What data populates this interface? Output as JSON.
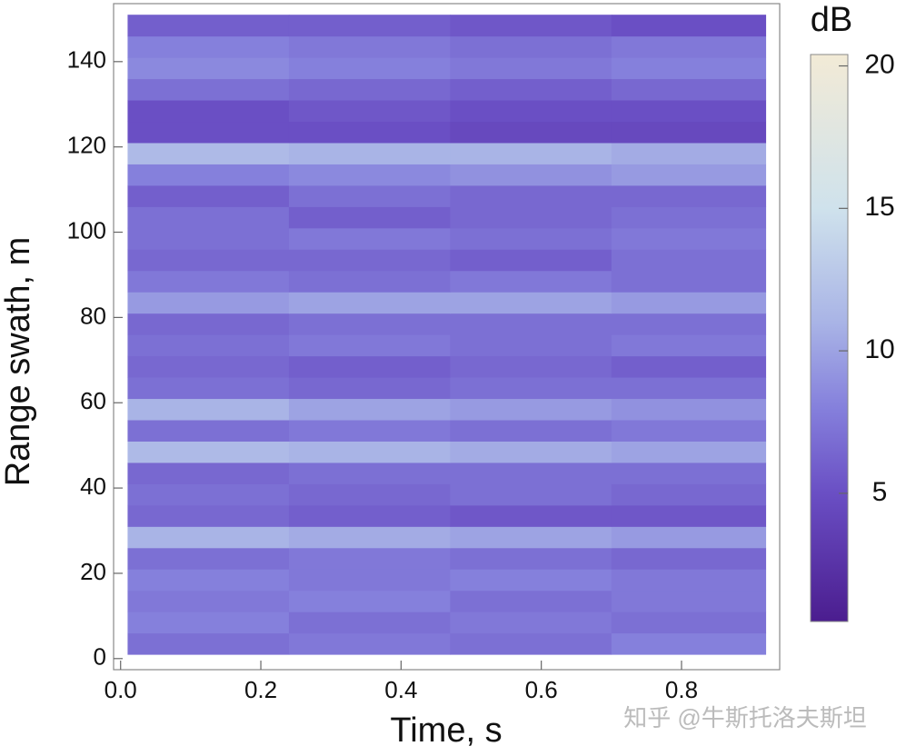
{
  "chart_data": {
    "type": "heatmap",
    "xlabel": "Time, s",
    "ylabel": "Range swath, m",
    "colorbar_label": "dB",
    "watermark": "知乎 @牛斯托洛夫斯坦",
    "xlim": [
      -0.01,
      0.94
    ],
    "ylim": [
      -2.6,
      153.6
    ],
    "xticks": [
      {
        "value": 0,
        "label": "0.0"
      },
      0.2,
      0.4,
      0.6,
      0.8
    ],
    "yticks": [
      0,
      20,
      40,
      60,
      80,
      100,
      120,
      140
    ],
    "x_bins": [
      0.01,
      0.24,
      0.47,
      0.7,
      0.92
    ],
    "y_bins": [
      1,
      6,
      11,
      16,
      21,
      26,
      31,
      36,
      41,
      46,
      51,
      56,
      61,
      66,
      71,
      76,
      81,
      86,
      91,
      96,
      101,
      106,
      111,
      116,
      121,
      126,
      131,
      136,
      141,
      146,
      151
    ],
    "z": [
      [
        7,
        7.5,
        7,
        8
      ],
      [
        8,
        7,
        7.5,
        7
      ],
      [
        7.5,
        8,
        7,
        7.5
      ],
      [
        8,
        7.5,
        8,
        7.5
      ],
      [
        7,
        7.5,
        7,
        6.5
      ],
      [
        11,
        10.5,
        10,
        9.5
      ],
      [
        6.5,
        6,
        5.5,
        5.5
      ],
      [
        7,
        6.5,
        7,
        6.5
      ],
      [
        6.5,
        7,
        7,
        7
      ],
      [
        11.5,
        11,
        10.5,
        10
      ],
      [
        7,
        7.5,
        7,
        7.5
      ],
      [
        11,
        10,
        9.5,
        9
      ],
      [
        7,
        6.5,
        7,
        7
      ],
      [
        6.5,
        6,
        6.5,
        6
      ],
      [
        7,
        7.5,
        7,
        7.5
      ],
      [
        6.5,
        7,
        7,
        7
      ],
      [
        9.5,
        10,
        10,
        9.5
      ],
      [
        7.5,
        7,
        7.5,
        7
      ],
      [
        6.5,
        6.5,
        6,
        7
      ],
      [
        7,
        7.5,
        7,
        7.5
      ],
      [
        7,
        6,
        6.5,
        7
      ],
      [
        6,
        7,
        6.5,
        6.5
      ],
      [
        8,
        8.5,
        9,
        9.5
      ],
      [
        11.5,
        11,
        11,
        10.5
      ],
      [
        5,
        5,
        4.5,
        4.5
      ],
      [
        5,
        5.5,
        5,
        5
      ],
      [
        7,
        6.5,
        6,
        6.5
      ],
      [
        8.5,
        8,
        7.5,
        8
      ],
      [
        8,
        7.5,
        7,
        7.5
      ],
      [
        6,
        6,
        5.5,
        5
      ]
    ],
    "clim": [
      0.5,
      20.4
    ],
    "cticks": [
      5,
      10,
      15,
      20
    ],
    "colorscale": [
      [
        0.5,
        "#4b1d8f"
      ],
      [
        5,
        "#6a4fc4"
      ],
      [
        8,
        "#8580dc"
      ],
      [
        11,
        "#a9b4e6"
      ],
      [
        15,
        "#cfe2ec"
      ],
      [
        20.4,
        "#f2ead6"
      ]
    ]
  }
}
